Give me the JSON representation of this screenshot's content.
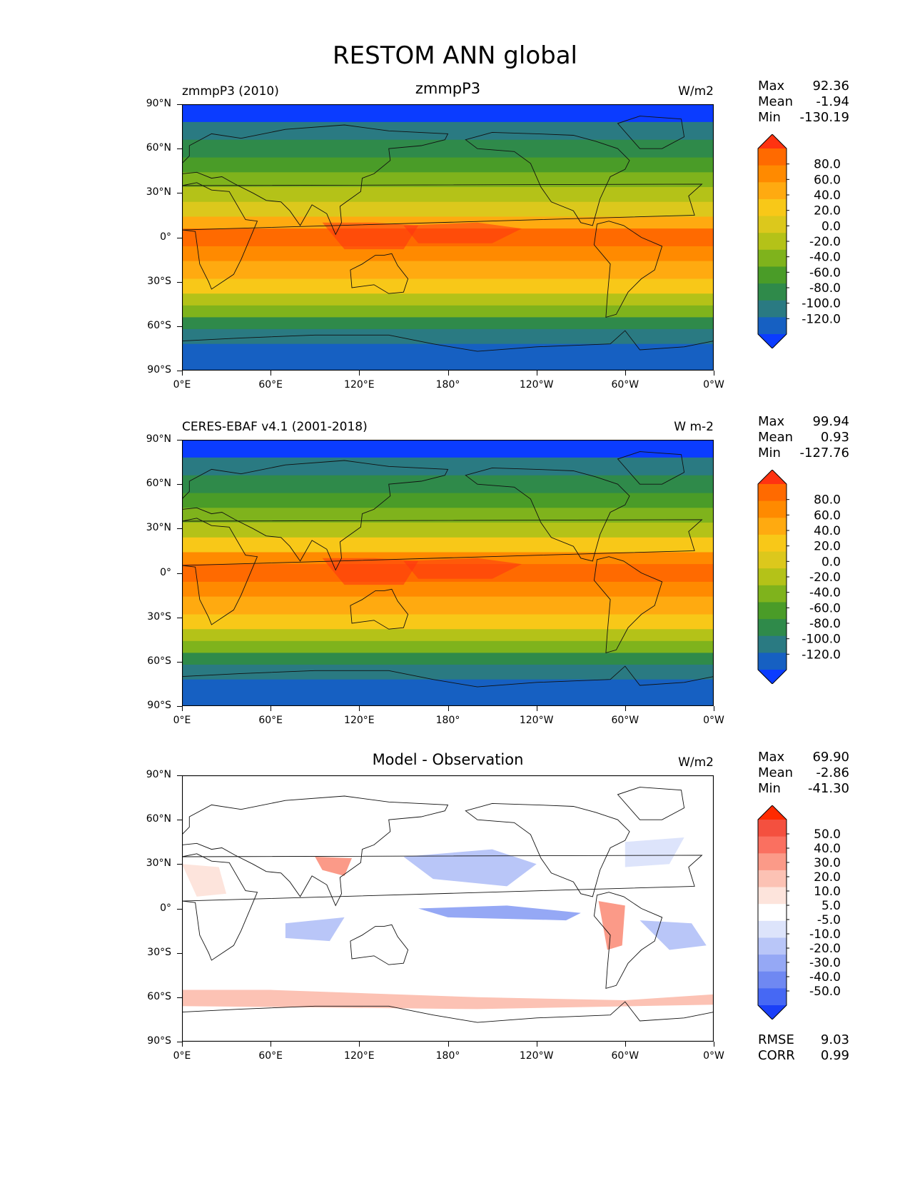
{
  "suptitle": "RESTOM ANN global",
  "axes": {
    "lat_ticks": [
      "90°N",
      "60°N",
      "30°N",
      "0°",
      "30°S",
      "60°S",
      "90°S"
    ],
    "lon_ticks": [
      "0°E",
      "60°E",
      "120°E",
      "180°",
      "120°W",
      "60°W",
      "0°W"
    ]
  },
  "panels": [
    {
      "title": "zmmpP3",
      "left_label": "zmmpP3 (2010)",
      "units": "W/m2",
      "stats": {
        "max_label": "Max",
        "max": "92.36",
        "mean_label": "Mean",
        "mean": "-1.94",
        "min_label": "Min",
        "min": "-130.19"
      },
      "levels": [
        "80.0",
        "60.0",
        "40.0",
        "20.0",
        "0.0",
        "-20.0",
        "-40.0",
        "-60.0",
        "-80.0",
        "-100.0",
        "-120.0"
      ],
      "colors": [
        "#ff3311",
        "#ff6a00",
        "#ff8a00",
        "#ffaa10",
        "#f8c818",
        "#dcc81c",
        "#b4c218",
        "#7fb31c",
        "#4a9c28",
        "#2f8a4a",
        "#2a7a82",
        "#1660c2",
        "#0b3cff"
      ]
    },
    {
      "title": "",
      "left_label": "CERES-EBAF v4.1 (2001-2018)",
      "units": "W m-2",
      "stats": {
        "max_label": "Max",
        "max": "99.94",
        "mean_label": "Mean",
        "mean": "0.93",
        "min_label": "Min",
        "min": "-127.76"
      },
      "levels": [
        "80.0",
        "60.0",
        "40.0",
        "20.0",
        "0.0",
        "-20.0",
        "-40.0",
        "-60.0",
        "-80.0",
        "-100.0",
        "-120.0"
      ],
      "colors": [
        "#ff3311",
        "#ff6a00",
        "#ff8a00",
        "#ffaa10",
        "#f8c818",
        "#dcc81c",
        "#b4c218",
        "#7fb31c",
        "#4a9c28",
        "#2f8a4a",
        "#2a7a82",
        "#1660c2",
        "#0b3cff"
      ]
    },
    {
      "title": "Model - Observation",
      "left_label": "",
      "units": "W/m2",
      "stats": {
        "max_label": "Max",
        "max": "69.90",
        "mean_label": "Mean",
        "mean": "-2.86",
        "min_label": "Min",
        "min": "-41.30"
      },
      "levels": [
        "50.0",
        "40.0",
        "30.0",
        "20.0",
        "10.0",
        "5.0",
        "-5.0",
        "-10.0",
        "-20.0",
        "-30.0",
        "-40.0",
        "-50.0"
      ],
      "colors": [
        "#ff2a00",
        "#f4503f",
        "#fa7060",
        "#fb9a88",
        "#fcc2b4",
        "#fde4dc",
        "#ffffff",
        "#dde4fb",
        "#b9c6f8",
        "#95a8f5",
        "#6f88f2",
        "#4668f4",
        "#1a3ff8"
      ],
      "footer": {
        "rmse_label": "RMSE",
        "rmse": "9.03",
        "corr_label": "CORR",
        "corr": "0.99"
      }
    }
  ]
}
